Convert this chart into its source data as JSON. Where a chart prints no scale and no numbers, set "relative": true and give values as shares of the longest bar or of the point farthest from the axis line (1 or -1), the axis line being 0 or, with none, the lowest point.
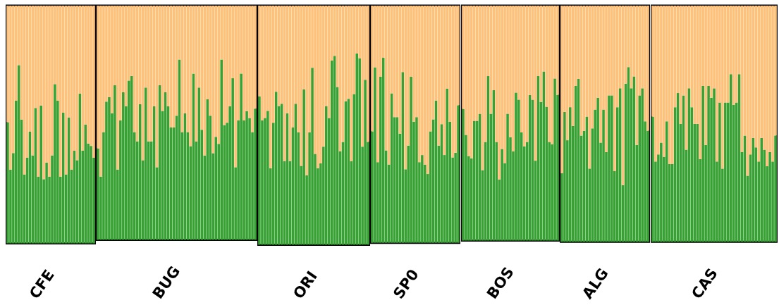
{
  "chart_data": [
    {
      "type": "bar",
      "stacked": true,
      "relative": true,
      "xlabel": "CFE",
      "categories": [
        null,
        null,
        null,
        null,
        null,
        null,
        null,
        null,
        null,
        null,
        null,
        null,
        null,
        null,
        null,
        null,
        null,
        null,
        null,
        null,
        null,
        null,
        null,
        null,
        null,
        null,
        null,
        null,
        null,
        null,
        null,
        null
      ],
      "series": [
        {
          "color": "#37a233",
          "values": [
            0.51,
            0.31,
            0.38,
            0.6,
            0.75,
            0.52,
            0.29,
            0.36,
            0.47,
            0.37,
            0.57,
            0.28,
            0.58,
            0.27,
            0.34,
            0.28,
            0.37,
            0.67,
            0.6,
            0.28,
            0.55,
            0.29,
            0.53,
            0.31,
            0.39,
            0.35,
            0.63,
            0.39,
            0.5,
            0.42,
            0.41,
            0.36
          ]
        },
        {
          "color": "#fdc17a",
          "values": [
            0.49,
            0.69,
            0.62,
            0.4,
            0.25,
            0.48,
            0.71,
            0.64,
            0.53,
            0.63,
            0.43,
            0.72,
            0.42,
            0.73,
            0.66,
            0.72,
            0.63,
            0.33,
            0.4,
            0.72,
            0.45,
            0.71,
            0.47,
            0.69,
            0.61,
            0.65,
            0.37,
            0.61,
            0.5,
            0.58,
            0.59,
            0.64
          ]
        }
      ]
    },
    {
      "type": "bar",
      "stacked": true,
      "relative": true,
      "xlabel": "BUG",
      "categories": [
        null,
        null,
        null,
        null,
        null,
        null,
        null,
        null,
        null,
        null,
        null,
        null,
        null,
        null,
        null,
        null,
        null,
        null,
        null,
        null,
        null,
        null,
        null,
        null,
        null,
        null,
        null,
        null,
        null,
        null,
        null,
        null,
        null,
        null,
        null,
        null,
        null,
        null,
        null,
        null,
        null,
        null,
        null,
        null,
        null,
        null,
        null,
        null,
        null,
        null,
        null,
        null,
        null,
        null,
        null,
        null,
        null
      ],
      "series": [
        {
          "color": "#37a233",
          "values": [
            0.39,
            0.27,
            0.46,
            0.59,
            0.61,
            0.54,
            0.66,
            0.3,
            0.51,
            0.63,
            0.57,
            0.68,
            0.7,
            0.46,
            0.42,
            0.58,
            0.34,
            0.65,
            0.42,
            0.42,
            0.57,
            0.31,
            0.66,
            0.55,
            0.63,
            0.57,
            0.48,
            0.48,
            0.53,
            0.77,
            0.46,
            0.54,
            0.46,
            0.4,
            0.71,
            0.42,
            0.65,
            0.47,
            0.36,
            0.6,
            0.53,
            0.37,
            0.44,
            0.41,
            0.77,
            0.49,
            0.5,
            0.57,
            0.69,
            0.31,
            0.51,
            0.71,
            0.51,
            0.55,
            0.52,
            0.46,
            0.56
          ]
        },
        {
          "color": "#fdc17a",
          "values": [
            0.61,
            0.73,
            0.54,
            0.41,
            0.39,
            0.46,
            0.34,
            0.7,
            0.49,
            0.37,
            0.43,
            0.32,
            0.3,
            0.54,
            0.58,
            0.42,
            0.66,
            0.35,
            0.58,
            0.58,
            0.43,
            0.69,
            0.34,
            0.45,
            0.37,
            0.43,
            0.52,
            0.52,
            0.47,
            0.23,
            0.54,
            0.46,
            0.54,
            0.6,
            0.29,
            0.58,
            0.35,
            0.53,
            0.64,
            0.4,
            0.47,
            0.63,
            0.56,
            0.59,
            0.23,
            0.51,
            0.5,
            0.43,
            0.31,
            0.69,
            0.49,
            0.29,
            0.49,
            0.45,
            0.48,
            0.54,
            0.44
          ]
        }
      ]
    },
    {
      "type": "bar",
      "stacked": true,
      "relative": true,
      "xlabel": "ORI",
      "categories": [
        null,
        null,
        null,
        null,
        null,
        null,
        null,
        null,
        null,
        null,
        null,
        null,
        null,
        null,
        null,
        null,
        null,
        null,
        null,
        null,
        null,
        null,
        null,
        null,
        null,
        null,
        null,
        null,
        null,
        null,
        null,
        null,
        null,
        null,
        null,
        null,
        null,
        null,
        null,
        null
      ],
      "series": [
        {
          "color": "#37a233",
          "values": [
            0.62,
            0.52,
            0.53,
            0.56,
            0.32,
            0.51,
            0.64,
            0.58,
            0.59,
            0.35,
            0.55,
            0.35,
            0.49,
            0.59,
            0.47,
            0.33,
            0.65,
            0.29,
            0.47,
            0.74,
            0.38,
            0.32,
            0.34,
            0.41,
            0.58,
            0.53,
            0.77,
            0.79,
            0.66,
            0.39,
            0.43,
            0.6,
            0.61,
            0.35,
            0.63,
            0.8,
            0.78,
            0.41,
            0.69,
            0.43
          ]
        },
        {
          "color": "#fdc17a",
          "values": [
            0.38,
            0.48,
            0.47,
            0.44,
            0.68,
            0.49,
            0.36,
            0.42,
            0.41,
            0.65,
            0.45,
            0.65,
            0.51,
            0.41,
            0.53,
            0.67,
            0.35,
            0.71,
            0.53,
            0.26,
            0.62,
            0.68,
            0.66,
            0.59,
            0.42,
            0.47,
            0.23,
            0.21,
            0.34,
            0.61,
            0.57,
            0.4,
            0.39,
            0.65,
            0.37,
            0.2,
            0.22,
            0.59,
            0.31,
            0.57
          ]
        }
      ]
    },
    {
      "type": "bar",
      "stacked": true,
      "relative": true,
      "xlabel": "SP0",
      "categories": [
        null,
        null,
        null,
        null,
        null,
        null,
        null,
        null,
        null,
        null,
        null,
        null,
        null,
        null,
        null,
        null,
        null,
        null,
        null,
        null,
        null,
        null,
        null,
        null,
        null,
        null,
        null,
        null,
        null,
        null,
        null,
        null
      ],
      "series": [
        {
          "color": "#37a233",
          "values": [
            0.47,
            0.74,
            0.34,
            0.7,
            0.78,
            0.39,
            0.33,
            0.63,
            0.53,
            0.53,
            0.46,
            0.72,
            0.31,
            0.41,
            0.7,
            0.51,
            0.53,
            0.34,
            0.37,
            0.33,
            0.29,
            0.47,
            0.52,
            0.6,
            0.41,
            0.5,
            0.37,
            0.65,
            0.51,
            0.36,
            0.38,
            0.58
          ]
        },
        {
          "color": "#fdc17a",
          "values": [
            0.53,
            0.26,
            0.66,
            0.3,
            0.22,
            0.61,
            0.67,
            0.37,
            0.47,
            0.47,
            0.54,
            0.28,
            0.69,
            0.59,
            0.3,
            0.49,
            0.47,
            0.66,
            0.63,
            0.67,
            0.71,
            0.53,
            0.48,
            0.4,
            0.59,
            0.5,
            0.63,
            0.35,
            0.49,
            0.64,
            0.62,
            0.42
          ]
        }
      ]
    },
    {
      "type": "bar",
      "stacked": true,
      "relative": true,
      "xlabel": "BOS",
      "categories": [
        null,
        null,
        null,
        null,
        null,
        null,
        null,
        null,
        null,
        null,
        null,
        null,
        null,
        null,
        null,
        null,
        null,
        null,
        null,
        null,
        null,
        null,
        null,
        null,
        null,
        null,
        null,
        null,
        null,
        null,
        null,
        null,
        null,
        null,
        null
      ],
      "series": [
        {
          "color": "#37a233",
          "values": [
            0.56,
            0.45,
            0.36,
            0.35,
            0.51,
            0.51,
            0.54,
            0.3,
            0.42,
            0.7,
            0.54,
            0.64,
            0.42,
            0.26,
            0.39,
            0.33,
            0.54,
            0.44,
            0.38,
            0.63,
            0.6,
            0.46,
            0.4,
            0.42,
            0.62,
            0.6,
            0.34,
            0.7,
            0.59,
            0.72,
            0.57,
            0.42,
            0.41,
            0.69,
            0.62
          ]
        },
        {
          "color": "#fdc17a",
          "values": [
            0.44,
            0.55,
            0.64,
            0.65,
            0.49,
            0.49,
            0.46,
            0.7,
            0.58,
            0.3,
            0.46,
            0.36,
            0.58,
            0.74,
            0.61,
            0.67,
            0.46,
            0.56,
            0.62,
            0.37,
            0.4,
            0.54,
            0.6,
            0.58,
            0.38,
            0.4,
            0.66,
            0.3,
            0.41,
            0.28,
            0.43,
            0.58,
            0.59,
            0.31,
            0.38
          ]
        }
      ]
    },
    {
      "type": "bar",
      "stacked": true,
      "relative": true,
      "xlabel": "ALG",
      "categories": [
        null,
        null,
        null,
        null,
        null,
        null,
        null,
        null,
        null,
        null,
        null,
        null,
        null,
        null,
        null,
        null,
        null,
        null,
        null,
        null,
        null,
        null,
        null,
        null,
        null,
        null,
        null,
        null,
        null,
        null,
        null,
        null
      ],
      "series": [
        {
          "color": "#37a233",
          "values": [
            0.29,
            0.55,
            0.43,
            0.57,
            0.49,
            0.66,
            0.69,
            0.45,
            0.47,
            0.53,
            0.31,
            0.48,
            0.56,
            0.61,
            0.42,
            0.56,
            0.38,
            0.62,
            0.62,
            0.3,
            0.57,
            0.65,
            0.24,
            0.67,
            0.74,
            0.65,
            0.7,
            0.41,
            0.62,
            0.65,
            0.51,
            0.47
          ]
        },
        {
          "color": "#fdc17a",
          "values": [
            0.71,
            0.45,
            0.57,
            0.43,
            0.51,
            0.34,
            0.31,
            0.55,
            0.53,
            0.47,
            0.69,
            0.52,
            0.44,
            0.39,
            0.58,
            0.44,
            0.62,
            0.38,
            0.38,
            0.7,
            0.43,
            0.35,
            0.76,
            0.33,
            0.26,
            0.35,
            0.3,
            0.59,
            0.38,
            0.35,
            0.49,
            0.53
          ]
        }
      ]
    },
    {
      "type": "bar",
      "stacked": true,
      "relative": true,
      "xlabel": "CAS",
      "categories": [
        null,
        null,
        null,
        null,
        null,
        null,
        null,
        null,
        null,
        null,
        null,
        null,
        null,
        null,
        null,
        null,
        null,
        null,
        null,
        null,
        null,
        null,
        null,
        null,
        null,
        null,
        null,
        null,
        null,
        null,
        null,
        null,
        null,
        null,
        null,
        null,
        null,
        null,
        null,
        null,
        null,
        null,
        null,
        null,
        null
      ],
      "series": [
        {
          "color": "#37a233",
          "values": [
            0.53,
            0.34,
            0.37,
            0.42,
            0.36,
            0.51,
            0.33,
            0.33,
            0.57,
            0.63,
            0.5,
            0.62,
            0.39,
            0.65,
            0.57,
            0.5,
            0.5,
            0.35,
            0.66,
            0.41,
            0.66,
            0.61,
            0.65,
            0.34,
            0.59,
            0.31,
            0.59,
            0.59,
            0.71,
            0.58,
            0.59,
            0.71,
            0.38,
            0.45,
            0.28,
            0.37,
            0.44,
            0.4,
            0.34,
            0.44,
            0.39,
            0.32,
            0.38,
            0.34,
            0.45
          ]
        },
        {
          "color": "#fdc17a",
          "values": [
            0.47,
            0.66,
            0.63,
            0.58,
            0.64,
            0.49,
            0.67,
            0.67,
            0.43,
            0.37,
            0.5,
            0.38,
            0.61,
            0.35,
            0.43,
            0.5,
            0.5,
            0.65,
            0.34,
            0.59,
            0.34,
            0.39,
            0.35,
            0.66,
            0.41,
            0.69,
            0.41,
            0.41,
            0.29,
            0.42,
            0.41,
            0.29,
            0.62,
            0.55,
            0.72,
            0.63,
            0.56,
            0.6,
            0.66,
            0.56,
            0.61,
            0.68,
            0.62,
            0.66,
            0.55
          ]
        }
      ]
    }
  ]
}
